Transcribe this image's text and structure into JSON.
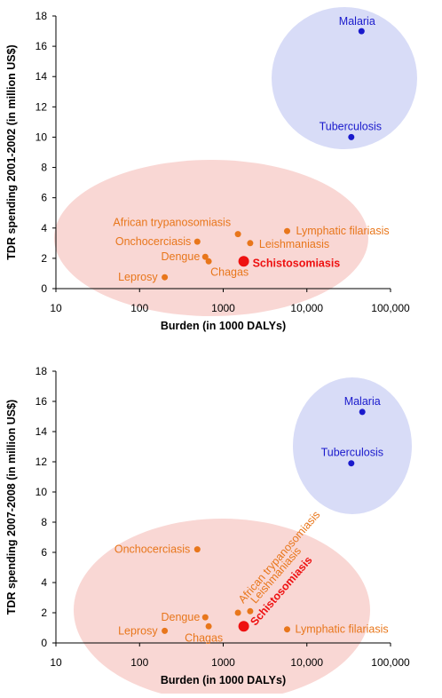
{
  "chart_data": [
    {
      "type": "scatter",
      "xlabel": "Burden (in 1000 DALYs)",
      "ylabel": "TDR spending 2001-2002 (in million US$)",
      "xscale": "log",
      "xlim": [
        10,
        100000
      ],
      "ylim": [
        0,
        18
      ],
      "xticks": [
        "10",
        "100",
        "1000",
        "10,000",
        "100,000"
      ],
      "yticks": [
        "0",
        "2",
        "4",
        "6",
        "8",
        "10",
        "12",
        "14",
        "16",
        "18"
      ],
      "colors": {
        "orange_group": "#E8761B",
        "blue_group": "#1a1acc",
        "highlight": "#ee1111",
        "pink_fill": "#F9D7D4",
        "blue_fill": "#D8DCF7"
      },
      "points": [
        {
          "label": "Malaria",
          "x": 45000,
          "y": 17.0,
          "group": "blue"
        },
        {
          "label": "Tuberculosis",
          "x": 34000,
          "y": 10.0,
          "group": "blue"
        },
        {
          "label": "Lymphatic filariasis",
          "x": 5800,
          "y": 3.8,
          "group": "orange"
        },
        {
          "label": "African trypanosomiasis",
          "x": 1500,
          "y": 3.6,
          "group": "orange"
        },
        {
          "label": "Leishmaniasis",
          "x": 2100,
          "y": 3.0,
          "group": "orange"
        },
        {
          "label": "Onchocerciasis",
          "x": 490,
          "y": 3.1,
          "group": "orange"
        },
        {
          "label": "Dengue",
          "x": 610,
          "y": 2.1,
          "group": "orange"
        },
        {
          "label": "Chagas",
          "x": 670,
          "y": 1.8,
          "group": "orange"
        },
        {
          "label": "Schistosomiasis",
          "x": 1760,
          "y": 1.8,
          "group": "highlight"
        },
        {
          "label": "Leprosy",
          "x": 200,
          "y": 0.75,
          "group": "orange"
        }
      ]
    },
    {
      "type": "scatter",
      "xlabel": "Burden (in 1000 DALYs)",
      "ylabel": "TDR spending 2007-2008 (in million US$)",
      "xscale": "log",
      "xlim": [
        10,
        100000
      ],
      "ylim": [
        0,
        18
      ],
      "xticks": [
        "10",
        "100",
        "1000",
        "10,000",
        "100,000"
      ],
      "yticks": [
        "0",
        "2",
        "4",
        "6",
        "8",
        "10",
        "12",
        "14",
        "16",
        "18"
      ],
      "colors": {
        "orange_group": "#E8761B",
        "blue_group": "#1a1acc",
        "highlight": "#ee1111",
        "pink_fill": "#F9D7D4",
        "blue_fill": "#D8DCF7"
      },
      "points": [
        {
          "label": "Malaria",
          "x": 46000,
          "y": 15.3,
          "group": "blue"
        },
        {
          "label": "Tuberculosis",
          "x": 34000,
          "y": 11.9,
          "group": "blue"
        },
        {
          "label": "Onchocerciasis",
          "x": 490,
          "y": 6.2,
          "group": "orange"
        },
        {
          "label": "African trypanosomiasis",
          "x": 1500,
          "y": 2.0,
          "group": "orange"
        },
        {
          "label": "Leishmaniasis",
          "x": 2100,
          "y": 2.1,
          "group": "orange"
        },
        {
          "label": "Dengue",
          "x": 610,
          "y": 1.7,
          "group": "orange"
        },
        {
          "label": "Chagas",
          "x": 670,
          "y": 1.1,
          "group": "orange"
        },
        {
          "label": "Schistosomiasis",
          "x": 1760,
          "y": 1.1,
          "group": "highlight"
        },
        {
          "label": "Leprosy",
          "x": 200,
          "y": 0.8,
          "group": "orange"
        },
        {
          "label": "Lymphatic filariasis",
          "x": 5800,
          "y": 0.9,
          "group": "orange"
        }
      ]
    }
  ]
}
